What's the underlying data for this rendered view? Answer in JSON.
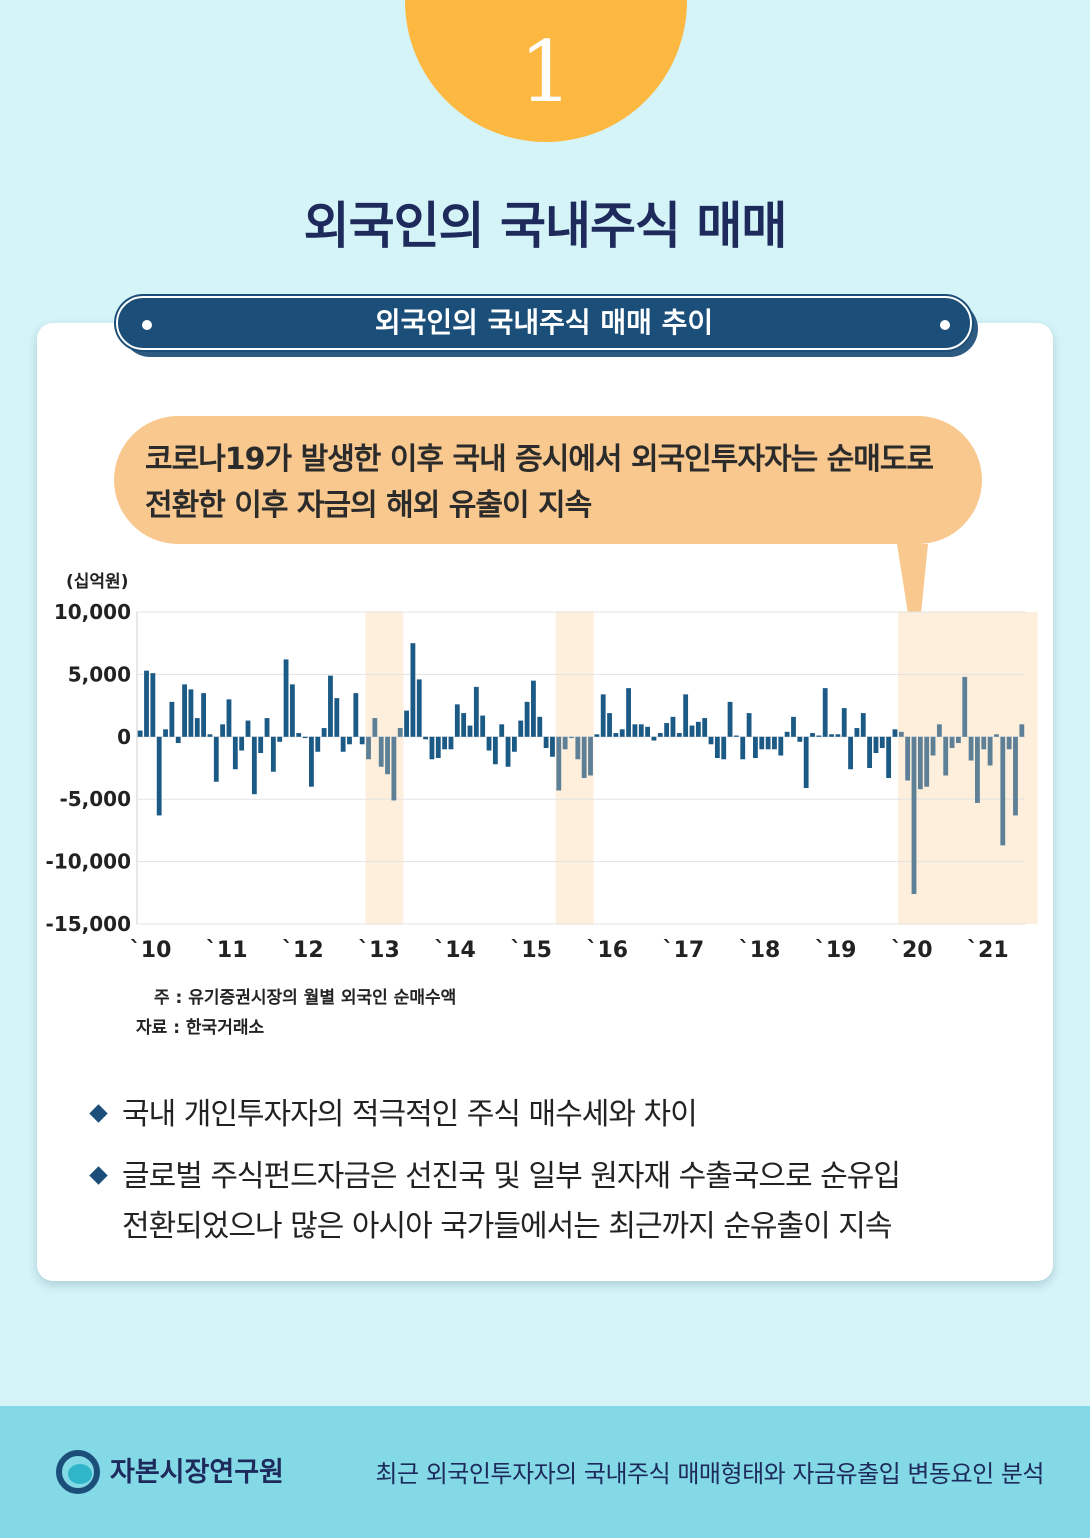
{
  "badge_number": "1",
  "main_title": "외국인의 국내주식 매매",
  "section_title": "외국인의 국내주식 매매 추이",
  "callout": {
    "line1": "코로나19가 발생한 이후 국내 증시에서 외국인투자자는 순매도로",
    "line2": "전환한 이후 자금의 해외 유출이 지속"
  },
  "notes": {
    "note": "주 : 유기증권시장의 월별 외국인 순매수액",
    "source": "자료 : 한국거래소"
  },
  "bullets": [
    {
      "text": "국내 개인투자자의 적극적인 주식 매수세와 차이"
    },
    {
      "text": "글로벌 주식펀드자금은 선진국 및 일부 원자재 수출국으로 순유입",
      "text2": "전환되었으나 많은 아시아 국가들에서는 최근까지 순유출이 지속"
    }
  ],
  "footer": {
    "org_name": "자본시장연구원",
    "report_title": "최근 외국인투자자의 국내주식 매매형태와 자금유출입 변동요인 분석"
  },
  "colors": {
    "bar_normal": "#1c5a86",
    "bar_highlight": "#5d8096",
    "shade": "#fdefdc",
    "callout": "#f8c88e"
  },
  "chart_data": {
    "type": "bar",
    "ylabel": "(십억원)",
    "ylim": [
      -15000,
      10000
    ],
    "yticks": [
      10000,
      5000,
      0,
      -5000,
      -10000,
      -15000
    ],
    "ytick_labels": [
      "10,000",
      "5,000",
      "0",
      "-5,000",
      "-10,000",
      "-15,000"
    ],
    "xtick_labels": [
      "`10",
      "`11",
      "`12",
      "`13",
      "`14",
      "`15",
      "`16",
      "`17",
      "`18",
      "`19",
      "`20",
      "`21"
    ],
    "start": "2010-01",
    "shaded_periods": [
      [
        "2013-01",
        "2013-06"
      ],
      [
        "2015-07",
        "2015-12"
      ],
      [
        "2020-01",
        "2021-10"
      ]
    ],
    "values": [
      500,
      5300,
      5100,
      -6300,
      600,
      2800,
      -500,
      4200,
      3800,
      1500,
      3500,
      200,
      -3600,
      1000,
      3000,
      -2600,
      -1100,
      1300,
      -4600,
      -1300,
      1500,
      -2800,
      -400,
      6200,
      4200,
      300,
      -100,
      -4000,
      -1200,
      700,
      4900,
      3100,
      -1200,
      -600,
      3500,
      -600,
      -1800,
      1500,
      -2400,
      -3000,
      -5100,
      700,
      2100,
      7500,
      4600,
      -200,
      -1800,
      -1700,
      -1000,
      -1000,
      2600,
      1900,
      900,
      4000,
      1700,
      -1100,
      -2200,
      1000,
      -2400,
      -1200,
      1300,
      2800,
      4500,
      1600,
      -900,
      -1600,
      -4300,
      -1000,
      -100,
      -1800,
      -3300,
      -3100,
      200,
      3400,
      1900,
      300,
      600,
      3900,
      1000,
      1000,
      800,
      -300,
      300,
      1100,
      1600,
      300,
      3400,
      900,
      1200,
      1500,
      -600,
      -1700,
      -1800,
      2800,
      100,
      -1800,
      1900,
      -1700,
      -1000,
      -1000,
      -1000,
      -1500,
      400,
      1600,
      -400,
      -4100,
      300,
      100,
      3900,
      200,
      200,
      2300,
      -2600,
      700,
      1900,
      -2500,
      -1300,
      -900,
      -3300,
      600,
      400,
      -3500,
      -12600,
      -4200,
      -4000,
      -1500,
      1000,
      -3100,
      -900,
      -500,
      4800,
      -1900,
      -5300,
      -1000,
      -2300,
      200,
      -8700,
      -1000,
      -6300,
      1000
    ]
  }
}
